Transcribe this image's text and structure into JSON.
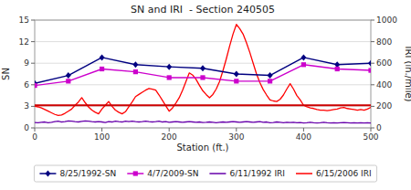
{
  "chart_data": {
    "type": "line",
    "title": "SN and IRI  - Section 240505",
    "x_label": "Station (ft.)",
    "y_label": "SN",
    "y2_label": "IRI (in./mile)",
    "xlim": [
      0,
      500
    ],
    "ylim": [
      0,
      15
    ],
    "y2lim": [
      0,
      1000
    ],
    "xticks": [
      0,
      100,
      200,
      300,
      400,
      500
    ],
    "yticks": [
      0,
      3,
      6,
      9,
      12,
      15
    ],
    "y2ticks": [
      0,
      200,
      400,
      600,
      800,
      1000
    ],
    "grid": true,
    "legend": "bottom",
    "series": [
      {
        "name": "8/25/1992-SN",
        "color": "#000080",
        "marker": "diamond",
        "axis": "y",
        "x": [
          0,
          50,
          100,
          150,
          200,
          250,
          300,
          350,
          400,
          450,
          500
        ],
        "values": [
          6.2,
          7.3,
          9.8,
          8.8,
          8.5,
          8.3,
          7.5,
          7.3,
          9.8,
          8.8,
          9.0
        ]
      },
      {
        "name": "4/7/2009-SN",
        "color": "#CC00CC",
        "marker": "square",
        "axis": "y",
        "x": [
          0,
          50,
          100,
          150,
          200,
          250,
          300,
          350,
          400,
          450,
          500
        ],
        "values": [
          5.9,
          6.5,
          8.2,
          7.8,
          7.0,
          7.0,
          6.5,
          6.5,
          8.8,
          8.2,
          8.0
        ]
      },
      {
        "name": "6/11/1992 IRI",
        "color": "#6600AA",
        "marker": "none",
        "axis": "y2",
        "x": [
          0,
          5,
          10,
          15,
          20,
          25,
          30,
          35,
          40,
          45,
          50,
          55,
          60,
          65,
          70,
          75,
          80,
          85,
          90,
          95,
          100,
          105,
          110,
          115,
          120,
          125,
          130,
          135,
          140,
          145,
          150,
          155,
          160,
          165,
          170,
          175,
          180,
          185,
          190,
          195,
          200,
          205,
          210,
          215,
          220,
          225,
          230,
          235,
          240,
          245,
          250,
          255,
          260,
          265,
          270,
          275,
          280,
          285,
          290,
          295,
          300,
          305,
          310,
          315,
          320,
          325,
          330,
          335,
          340,
          345,
          350,
          355,
          360,
          365,
          370,
          375,
          380,
          385,
          390,
          395,
          400,
          405,
          410,
          415,
          420,
          425,
          430,
          435,
          440,
          445,
          450,
          455,
          460,
          465,
          470,
          475,
          480,
          485,
          490,
          495,
          500
        ],
        "values": [
          50,
          48,
          52,
          55,
          48,
          52,
          58,
          62,
          55,
          58,
          65,
          62,
          58,
          55,
          60,
          65,
          62,
          58,
          55,
          58,
          55,
          50,
          58,
          55,
          62,
          58,
          55,
          62,
          58,
          62,
          58,
          55,
          58,
          62,
          58,
          55,
          58,
          62,
          55,
          58,
          52,
          55,
          58,
          55,
          52,
          55,
          58,
          55,
          52,
          55,
          50,
          52,
          55,
          52,
          48,
          52,
          55,
          52,
          55,
          58,
          55,
          52,
          55,
          58,
          55,
          52,
          55,
          58,
          52,
          55,
          48,
          50,
          55,
          52,
          48,
          52,
          50,
          52,
          48,
          50,
          45,
          48,
          52,
          48,
          45,
          48,
          52,
          48,
          45,
          48,
          45,
          48,
          50,
          48,
          45,
          48,
          45,
          48,
          45,
          48,
          45
        ]
      },
      {
        "name": "6/15/2006 IRI",
        "color": "#FF0000",
        "marker": "none",
        "axis": "y2",
        "x": [
          0,
          5,
          10,
          15,
          20,
          25,
          30,
          35,
          40,
          45,
          50,
          55,
          60,
          65,
          70,
          75,
          80,
          85,
          90,
          95,
          100,
          105,
          110,
          115,
          120,
          125,
          130,
          135,
          140,
          145,
          150,
          155,
          160,
          165,
          170,
          175,
          180,
          185,
          190,
          195,
          200,
          205,
          210,
          215,
          220,
          225,
          230,
          235,
          240,
          245,
          250,
          255,
          260,
          265,
          270,
          275,
          280,
          285,
          290,
          295,
          300,
          305,
          310,
          315,
          320,
          325,
          330,
          335,
          340,
          345,
          350,
          355,
          360,
          365,
          370,
          375,
          380,
          385,
          390,
          395,
          400,
          405,
          410,
          415,
          420,
          425,
          430,
          435,
          440,
          445,
          450,
          455,
          460,
          465,
          470,
          475,
          480,
          485,
          490,
          495,
          500
        ],
        "values": [
          200,
          195,
          185,
          170,
          155,
          140,
          125,
          115,
          120,
          135,
          155,
          175,
          210,
          240,
          280,
          235,
          195,
          165,
          145,
          130,
          175,
          210,
          245,
          200,
          165,
          145,
          130,
          150,
          195,
          240,
          290,
          310,
          330,
          350,
          365,
          360,
          350,
          305,
          255,
          205,
          155,
          185,
          230,
          280,
          350,
          430,
          510,
          490,
          450,
          395,
          345,
          310,
          280,
          310,
          360,
          430,
          530,
          640,
          760,
          870,
          960,
          920,
          870,
          790,
          700,
          600,
          500,
          420,
          355,
          305,
          260,
          250,
          245,
          265,
          305,
          360,
          410,
          360,
          300,
          260,
          210,
          195,
          185,
          180,
          170,
          165,
          165,
          160,
          165,
          170,
          175,
          185,
          190,
          180,
          175,
          170,
          165,
          170,
          165,
          175,
          190
        ]
      }
    ],
    "reference_lines": [
      {
        "value": 210,
        "axis": "y2",
        "color": "#CC0000"
      }
    ]
  }
}
